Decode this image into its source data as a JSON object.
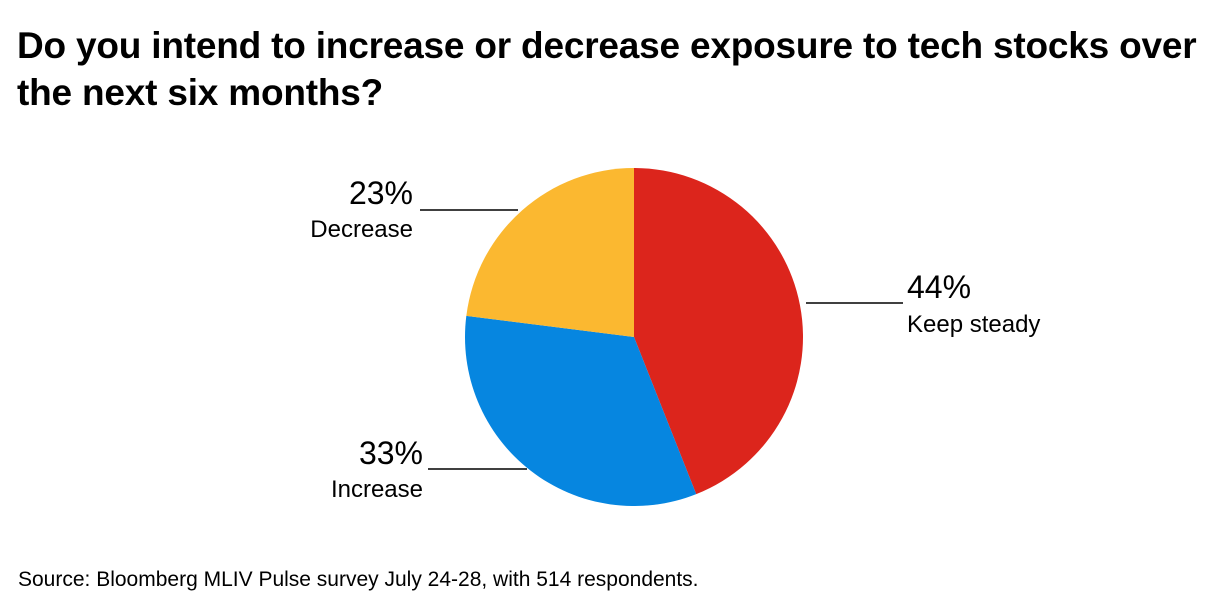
{
  "chart_data": {
    "type": "pie",
    "title": "Do you intend to increase or decrease exposure to tech stocks over the next six months?",
    "slices": [
      {
        "label": "Keep steady",
        "value": 44,
        "value_label": "44%",
        "color": "#dc251c"
      },
      {
        "label": "Increase",
        "value": 33,
        "value_label": "33%",
        "color": "#0686e0"
      },
      {
        "label": "Decrease",
        "value": 23,
        "value_label": "23%",
        "color": "#fbb830"
      }
    ],
    "start_angle": "12 o'clock",
    "direction": "clockwise"
  },
  "source": "Source: Bloomberg MLIV Pulse survey July 24-28, with 514 respondents."
}
